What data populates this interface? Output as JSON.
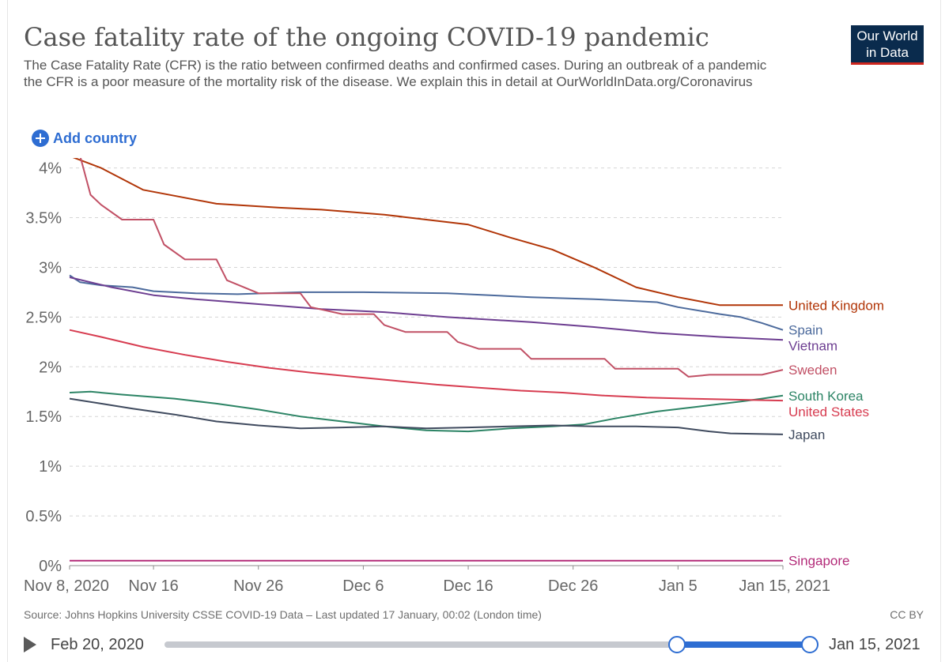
{
  "header": {
    "title": "Case fatality rate of the ongoing COVID-19 pandemic",
    "subtitle": "The Case Fatality Rate (CFR) is the ratio between confirmed deaths and confirmed cases. During an outbreak of a pandemic the CFR is a poor measure of the mortality risk of the disease. We explain this in detail at OurWorldInData.org/Coronavirus",
    "logo_line1": "Our World",
    "logo_line2": "in Data"
  },
  "controls": {
    "add_country_label": "Add country"
  },
  "footer": {
    "source": "Source: Johns Hopkins University CSSE COVID-19 Data – Last updated 17 January, 00:02 (London time)",
    "license": "CC BY"
  },
  "timeline": {
    "start_label": "Feb 20, 2020",
    "end_label": "Jan 15, 2021"
  },
  "colors": {
    "accent": "#2e6dd2",
    "logo_bg": "#0a2b4d",
    "logo_stripe": "#ce261e"
  },
  "chart_data": {
    "type": "line",
    "x_ticks": [
      "Nov 8, 2020",
      "Nov 16",
      "Nov 26",
      "Dec 6",
      "Dec 16",
      "Dec 26",
      "Jan 5",
      "Jan 15, 2021"
    ],
    "x_tick_days": [
      0,
      8,
      18,
      28,
      38,
      48,
      58,
      68
    ],
    "x_domain_days": [
      0,
      68
    ],
    "y_ticks": [
      "0%",
      "0.5%",
      "1%",
      "1.5%",
      "2%",
      "2.5%",
      "3%",
      "3.5%",
      "4%"
    ],
    "y_tick_values": [
      0,
      0.5,
      1,
      1.5,
      2,
      2.5,
      3,
      3.5,
      4
    ],
    "ylim": [
      0,
      4.1
    ],
    "grid": "horizontal dashed",
    "legend": "labels at line ends (right)",
    "series": [
      {
        "name": "United Kingdom",
        "color": "#b13507",
        "points": [
          [
            0,
            4.12
          ],
          [
            3,
            4.0
          ],
          [
            7,
            3.78
          ],
          [
            10,
            3.72
          ],
          [
            14,
            3.64
          ],
          [
            20,
            3.6
          ],
          [
            24,
            3.58
          ],
          [
            30,
            3.53
          ],
          [
            34,
            3.48
          ],
          [
            38,
            3.43
          ],
          [
            42,
            3.3
          ],
          [
            46,
            3.18
          ],
          [
            50,
            3.0
          ],
          [
            54,
            2.8
          ],
          [
            58,
            2.7
          ],
          [
            62,
            2.62
          ],
          [
            65,
            2.62
          ],
          [
            68,
            2.62
          ]
        ]
      },
      {
        "name": "Spain",
        "color": "#4c6a9c",
        "points": [
          [
            0,
            2.92
          ],
          [
            1,
            2.85
          ],
          [
            3,
            2.82
          ],
          [
            6,
            2.8
          ],
          [
            8,
            2.76
          ],
          [
            12,
            2.74
          ],
          [
            16,
            2.73
          ],
          [
            22,
            2.75
          ],
          [
            28,
            2.75
          ],
          [
            36,
            2.74
          ],
          [
            44,
            2.7
          ],
          [
            50,
            2.68
          ],
          [
            56,
            2.65
          ],
          [
            58,
            2.6
          ],
          [
            62,
            2.53
          ],
          [
            64,
            2.5
          ],
          [
            66,
            2.44
          ],
          [
            68,
            2.37
          ]
        ]
      },
      {
        "name": "Vietnam",
        "color": "#6d3e91",
        "points": [
          [
            0,
            2.9
          ],
          [
            4,
            2.8
          ],
          [
            8,
            2.72
          ],
          [
            12,
            2.68
          ],
          [
            18,
            2.63
          ],
          [
            24,
            2.58
          ],
          [
            30,
            2.55
          ],
          [
            36,
            2.5
          ],
          [
            44,
            2.45
          ],
          [
            50,
            2.4
          ],
          [
            56,
            2.34
          ],
          [
            62,
            2.3
          ],
          [
            68,
            2.27
          ]
        ]
      },
      {
        "name": "Sweden",
        "color": "#c15065",
        "points": [
          [
            0,
            4.12
          ],
          [
            1,
            4.12
          ],
          [
            2,
            3.73
          ],
          [
            3,
            3.63
          ],
          [
            5,
            3.48
          ],
          [
            8,
            3.48
          ],
          [
            9,
            3.23
          ],
          [
            11,
            3.08
          ],
          [
            14,
            3.08
          ],
          [
            15,
            2.87
          ],
          [
            18,
            2.74
          ],
          [
            22,
            2.74
          ],
          [
            23,
            2.6
          ],
          [
            26,
            2.53
          ],
          [
            29,
            2.53
          ],
          [
            30,
            2.42
          ],
          [
            32,
            2.35
          ],
          [
            36,
            2.35
          ],
          [
            37,
            2.25
          ],
          [
            39,
            2.18
          ],
          [
            43,
            2.18
          ],
          [
            44,
            2.08
          ],
          [
            51,
            2.08
          ],
          [
            52,
            1.98
          ],
          [
            58,
            1.98
          ],
          [
            59,
            1.9
          ],
          [
            61,
            1.92
          ],
          [
            66,
            1.92
          ],
          [
            68,
            1.97
          ]
        ]
      },
      {
        "name": "South Korea",
        "color": "#2c8465",
        "points": [
          [
            0,
            1.74
          ],
          [
            2,
            1.75
          ],
          [
            5,
            1.72
          ],
          [
            10,
            1.68
          ],
          [
            14,
            1.63
          ],
          [
            18,
            1.57
          ],
          [
            22,
            1.5
          ],
          [
            26,
            1.45
          ],
          [
            30,
            1.4
          ],
          [
            34,
            1.36
          ],
          [
            38,
            1.35
          ],
          [
            42,
            1.38
          ],
          [
            46,
            1.4
          ],
          [
            49,
            1.42
          ],
          [
            52,
            1.48
          ],
          [
            56,
            1.55
          ],
          [
            60,
            1.6
          ],
          [
            64,
            1.65
          ],
          [
            66,
            1.68
          ],
          [
            68,
            1.71
          ]
        ]
      },
      {
        "name": "United States",
        "color": "#d73c50",
        "points": [
          [
            0,
            2.37
          ],
          [
            3,
            2.3
          ],
          [
            7,
            2.2
          ],
          [
            11,
            2.12
          ],
          [
            15,
            2.05
          ],
          [
            19,
            1.99
          ],
          [
            23,
            1.94
          ],
          [
            27,
            1.9
          ],
          [
            31,
            1.86
          ],
          [
            35,
            1.82
          ],
          [
            39,
            1.79
          ],
          [
            43,
            1.76
          ],
          [
            47,
            1.74
          ],
          [
            51,
            1.71
          ],
          [
            55,
            1.69
          ],
          [
            59,
            1.68
          ],
          [
            63,
            1.67
          ],
          [
            68,
            1.66
          ]
        ]
      },
      {
        "name": "Japan",
        "color": "#3f4a5e",
        "points": [
          [
            0,
            1.68
          ],
          [
            3,
            1.63
          ],
          [
            6,
            1.58
          ],
          [
            10,
            1.52
          ],
          [
            14,
            1.45
          ],
          [
            18,
            1.41
          ],
          [
            22,
            1.38
          ],
          [
            26,
            1.39
          ],
          [
            30,
            1.4
          ],
          [
            34,
            1.38
          ],
          [
            38,
            1.39
          ],
          [
            42,
            1.4
          ],
          [
            46,
            1.41
          ],
          [
            50,
            1.4
          ],
          [
            54,
            1.4
          ],
          [
            58,
            1.39
          ],
          [
            61,
            1.35
          ],
          [
            63,
            1.33
          ],
          [
            68,
            1.32
          ]
        ]
      },
      {
        "name": "Singapore",
        "color": "#b32b79",
        "points": [
          [
            0,
            0.05
          ],
          [
            68,
            0.05
          ]
        ]
      }
    ]
  }
}
